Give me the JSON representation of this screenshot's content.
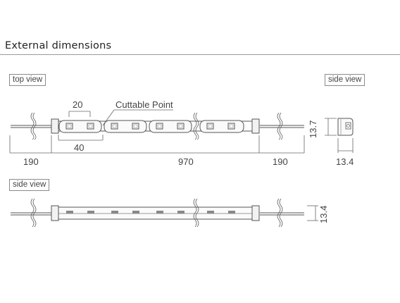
{
  "section": {
    "title": "External dimensions"
  },
  "top_view": {
    "label": "top view",
    "dim_led_pitch": "20",
    "dim_cut_pitch": "40",
    "cuttable_label": "Cuttable Point",
    "dim_left_lead": "190",
    "dim_body": "970",
    "dim_right_lead": "190"
  },
  "side_view_small": {
    "label": "side view",
    "dim_height": "13.7",
    "dim_width": "13.4"
  },
  "side_view_long": {
    "label": "side view",
    "dim_height": "13.4"
  }
}
